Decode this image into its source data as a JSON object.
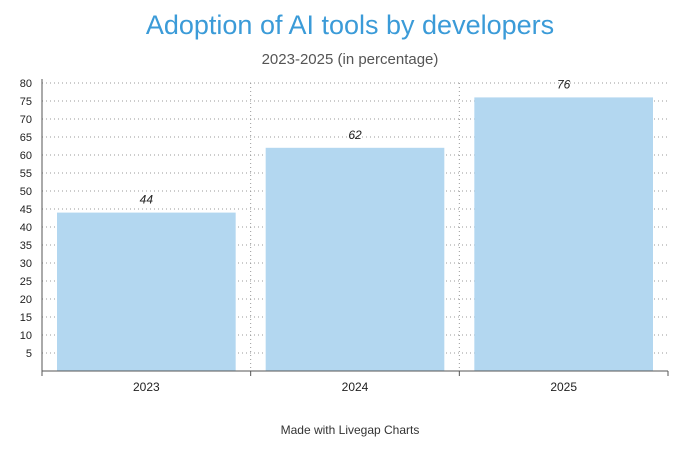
{
  "chart_data": {
    "type": "bar",
    "title": "Adoption of AI tools by developers",
    "subtitle": "2023-2025 (in percentage)",
    "categories": [
      "2023",
      "2024",
      "2025"
    ],
    "values": [
      44,
      62,
      76
    ],
    "data_labels": [
      "44",
      "62",
      "76"
    ],
    "ylim": [
      0,
      80
    ],
    "yticks": [
      "5",
      "10",
      "15",
      "20",
      "25",
      "30",
      "35",
      "40",
      "45",
      "50",
      "55",
      "60",
      "65",
      "70",
      "75",
      "80"
    ],
    "grid": true,
    "bar_color": "#b3d7f0"
  },
  "footer": "Made with Livegap Charts"
}
